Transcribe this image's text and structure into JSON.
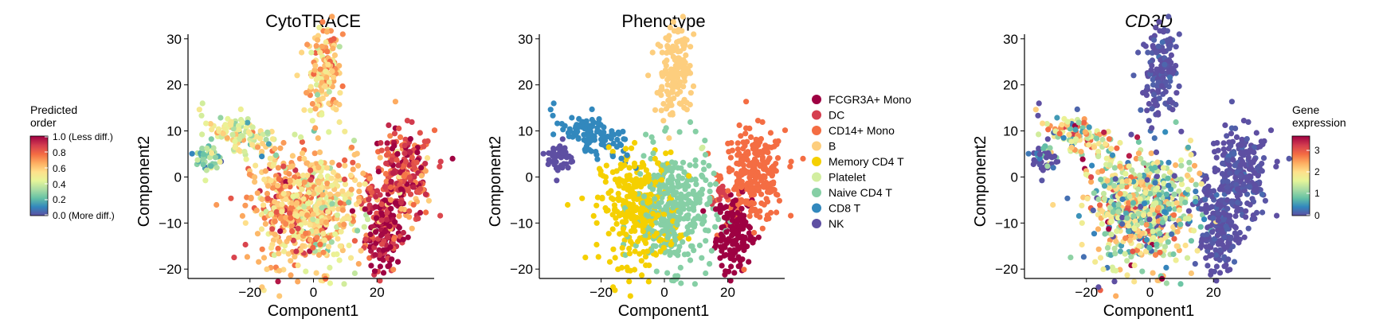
{
  "axis_label_x": "Component1",
  "axis_label_y": "Component2",
  "cytotrace_legend": {
    "title_lines": [
      "Predicted",
      "order"
    ],
    "ticks": [
      "1.0 (Less diff.)",
      "0.8",
      "0.6",
      "0.4",
      "0.2",
      "0.0 (More diff.)"
    ]
  },
  "gene_legend": {
    "title_lines": [
      "Gene",
      "expression"
    ],
    "ticks": [
      "3",
      "2",
      "1",
      "0"
    ]
  },
  "phenotype_legend": {
    "entries": [
      {
        "label": "FCGR3A+ Mono",
        "color": "#9e0142"
      },
      {
        "label": "DC",
        "color": "#d53e4f"
      },
      {
        "label": "CD14+ Mono",
        "color": "#f46d43"
      },
      {
        "label": "B",
        "color": "#fdce7e"
      },
      {
        "label": "Memory CD4 T",
        "color": "#f5d000"
      },
      {
        "label": "Platelet",
        "color": "#d2eea0"
      },
      {
        "label": "Naive CD4 T",
        "color": "#86cfa5"
      },
      {
        "label": "CD8 T",
        "color": "#3288bd"
      },
      {
        "label": "NK",
        "color": "#5e4fa2"
      }
    ]
  },
  "chart_data": [
    {
      "type": "scatter",
      "title": "CytoTRACE",
      "xlabel": "Component1",
      "ylabel": "Component2",
      "xlim": [
        -38,
        38
      ],
      "ylim": [
        -21,
        31
      ],
      "x_ticks": [
        -20,
        0,
        20
      ],
      "y_ticks": [
        -20,
        -10,
        0,
        10,
        20,
        30
      ],
      "x_tick_labels": [
        "−20",
        "0",
        "20"
      ],
      "y_tick_labels": [
        "−20",
        "−10",
        "0",
        "10",
        "20",
        "30"
      ],
      "color_by": "Predicted order (continuous 0–1)",
      "colormap": [
        "#5e4fa2",
        "#3288bd",
        "#66c2a5",
        "#abdda4",
        "#e6f598",
        "#fee08b",
        "#fdae61",
        "#f46d43",
        "#d53e4f",
        "#9e0142"
      ],
      "grid": false
    },
    {
      "type": "scatter",
      "title": "Phenotype",
      "xlabel": "Component1",
      "ylabel": "Component2",
      "xlim": [
        -38,
        38
      ],
      "ylim": [
        -21,
        31
      ],
      "x_ticks": [
        -20,
        0,
        20
      ],
      "y_ticks": [
        -20,
        -10,
        0,
        10,
        20,
        30
      ],
      "x_tick_labels": [
        "−20",
        "0",
        "20"
      ],
      "y_tick_labels": [
        "−20",
        "−10",
        "0",
        "10",
        "20",
        "30"
      ],
      "legend_placement": "right",
      "clusters": [
        {
          "name": "FCGR3A+ Mono",
          "color": "#9e0142",
          "center": [
            22,
            -12
          ],
          "spread": [
            3.5,
            4
          ]
        },
        {
          "name": "DC",
          "color": "#d53e4f",
          "center": [
            18,
            -4
          ],
          "spread": [
            1.5,
            1
          ]
        },
        {
          "name": "CD14+ Mono",
          "color": "#f46d43",
          "center": [
            28,
            0
          ],
          "spread": [
            5,
            5
          ]
        },
        {
          "name": "B",
          "color": "#fdce7e",
          "center": [
            3,
            23
          ],
          "spread": [
            3.5,
            5
          ]
        },
        {
          "name": "Memory CD4 T",
          "color": "#f5d000",
          "center": [
            -8,
            -7
          ],
          "spread": [
            6,
            6
          ]
        },
        {
          "name": "Platelet",
          "color": "#d2eea0",
          "center": [
            12,
            6
          ],
          "spread": [
            0.5,
            0.5
          ]
        },
        {
          "name": "Naive CD4 T",
          "color": "#86cfa5",
          "center": [
            3,
            -7
          ],
          "spread": [
            6,
            6.5
          ]
        },
        {
          "name": "CD8 T",
          "color": "#3288bd",
          "center": [
            -23,
            9
          ],
          "spread": [
            5,
            3
          ]
        },
        {
          "name": "NK",
          "color": "#5e4fa2",
          "center": [
            -33,
            4
          ],
          "spread": [
            2,
            2
          ]
        }
      ],
      "grid": false
    },
    {
      "type": "scatter",
      "title": "CD3D",
      "xlabel": "Component1",
      "ylabel": "Component2",
      "xlim": [
        -38,
        38
      ],
      "ylim": [
        -21,
        31
      ],
      "x_ticks": [
        -20,
        0,
        20
      ],
      "y_ticks": [
        -20,
        -10,
        0,
        10,
        20,
        30
      ],
      "x_tick_labels": [
        "−20",
        "0",
        "20"
      ],
      "y_tick_labels": [
        "−20",
        "−10",
        "0",
        "10",
        "20",
        "30"
      ],
      "color_by": "Gene expression (continuous 0–3.7)",
      "colormap": [
        "#5e4fa2",
        "#3288bd",
        "#66c2a5",
        "#abdda4",
        "#e6f598",
        "#fee08b",
        "#fdae61",
        "#f46d43",
        "#d53e4f",
        "#9e0142"
      ],
      "grid": false
    }
  ]
}
